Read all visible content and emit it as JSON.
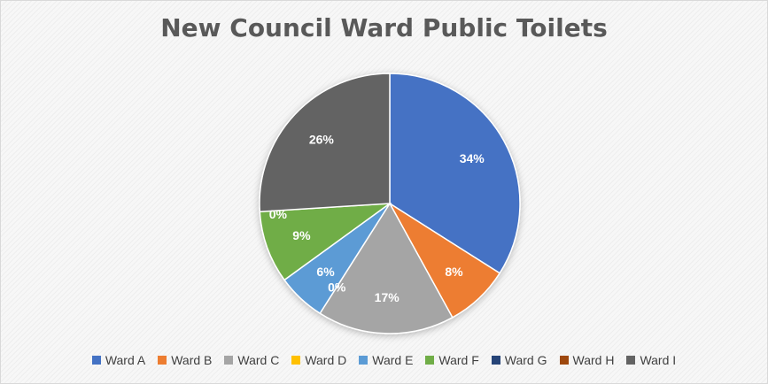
{
  "chart_data": {
    "type": "pie",
    "title": "New Council Ward Public Toilets",
    "legend_position": "bottom",
    "slices": [
      {
        "name": "Ward A",
        "value": 34,
        "label": "34%",
        "color": "#4472C4"
      },
      {
        "name": "Ward B",
        "value": 8,
        "label": "8%",
        "color": "#ED7D31"
      },
      {
        "name": "Ward C",
        "value": 17,
        "label": "17%",
        "color": "#A5A5A5"
      },
      {
        "name": "Ward D",
        "value": 0,
        "label": "0%",
        "color": "#FFC000"
      },
      {
        "name": "Ward E",
        "value": 6,
        "label": "6%",
        "color": "#5B9BD5"
      },
      {
        "name": "Ward F",
        "value": 9,
        "label": "9%",
        "color": "#70AD47"
      },
      {
        "name": "Ward G",
        "value": 0,
        "label": "0%",
        "color": "#264478"
      },
      {
        "name": "Ward H",
        "value": 0,
        "label": "",
        "color": "#9E480E"
      },
      {
        "name": "Ward I",
        "value": 26,
        "label": "26%",
        "color": "#636363"
      }
    ]
  }
}
